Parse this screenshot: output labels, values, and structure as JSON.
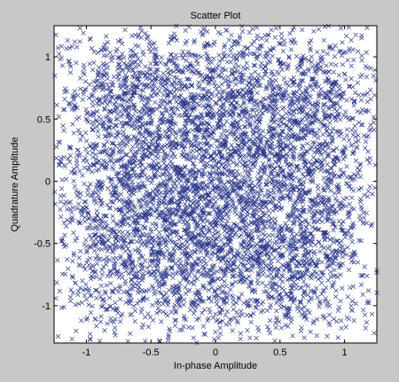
{
  "figure": {
    "background": "#c8c8c8",
    "axes_background": "#ffffff"
  },
  "chart_data": {
    "type": "scatter",
    "title": "Scatter Plot",
    "xlabel": "In-phase Amplitude",
    "ylabel": "Quadrature Amplitude",
    "xlim": [
      -1.25,
      1.25
    ],
    "ylim": [
      -1.3,
      1.25
    ],
    "x_ticks": [
      -1,
      -0.5,
      0,
      0.5,
      1
    ],
    "x_tick_labels": [
      "-1",
      "-0.5",
      "0",
      "0.5",
      "1"
    ],
    "y_ticks": [
      -1,
      -0.5,
      0,
      0.5,
      1
    ],
    "y_tick_labels": [
      "-1",
      "-0.5",
      "0",
      "0.5",
      "1"
    ],
    "grid": false,
    "marker": "x",
    "marker_color": "#2e3a8c",
    "series": [
      {
        "points_note": "dense 16-QAM-like noisy constellation of many thousands of 'x' markers filling the square, thinner near the center",
        "clusters": [
          {
            "x": -0.75,
            "y": 0.75
          },
          {
            "x": -0.25,
            "y": 0.75
          },
          {
            "x": 0.25,
            "y": 0.75
          },
          {
            "x": 0.75,
            "y": 0.75
          },
          {
            "x": -0.75,
            "y": 0.25
          },
          {
            "x": -0.25,
            "y": 0.25
          },
          {
            "x": 0.25,
            "y": 0.25
          },
          {
            "x": 0.75,
            "y": 0.25
          },
          {
            "x": -0.75,
            "y": -0.25
          },
          {
            "x": -0.25,
            "y": -0.25
          },
          {
            "x": 0.25,
            "y": -0.25
          },
          {
            "x": 0.75,
            "y": -0.25
          },
          {
            "x": -0.75,
            "y": -0.75
          },
          {
            "x": -0.25,
            "y": -0.75
          },
          {
            "x": 0.25,
            "y": -0.75
          },
          {
            "x": 0.75,
            "y": -0.75
          }
        ],
        "spread": 0.28,
        "count": 6000
      }
    ]
  }
}
